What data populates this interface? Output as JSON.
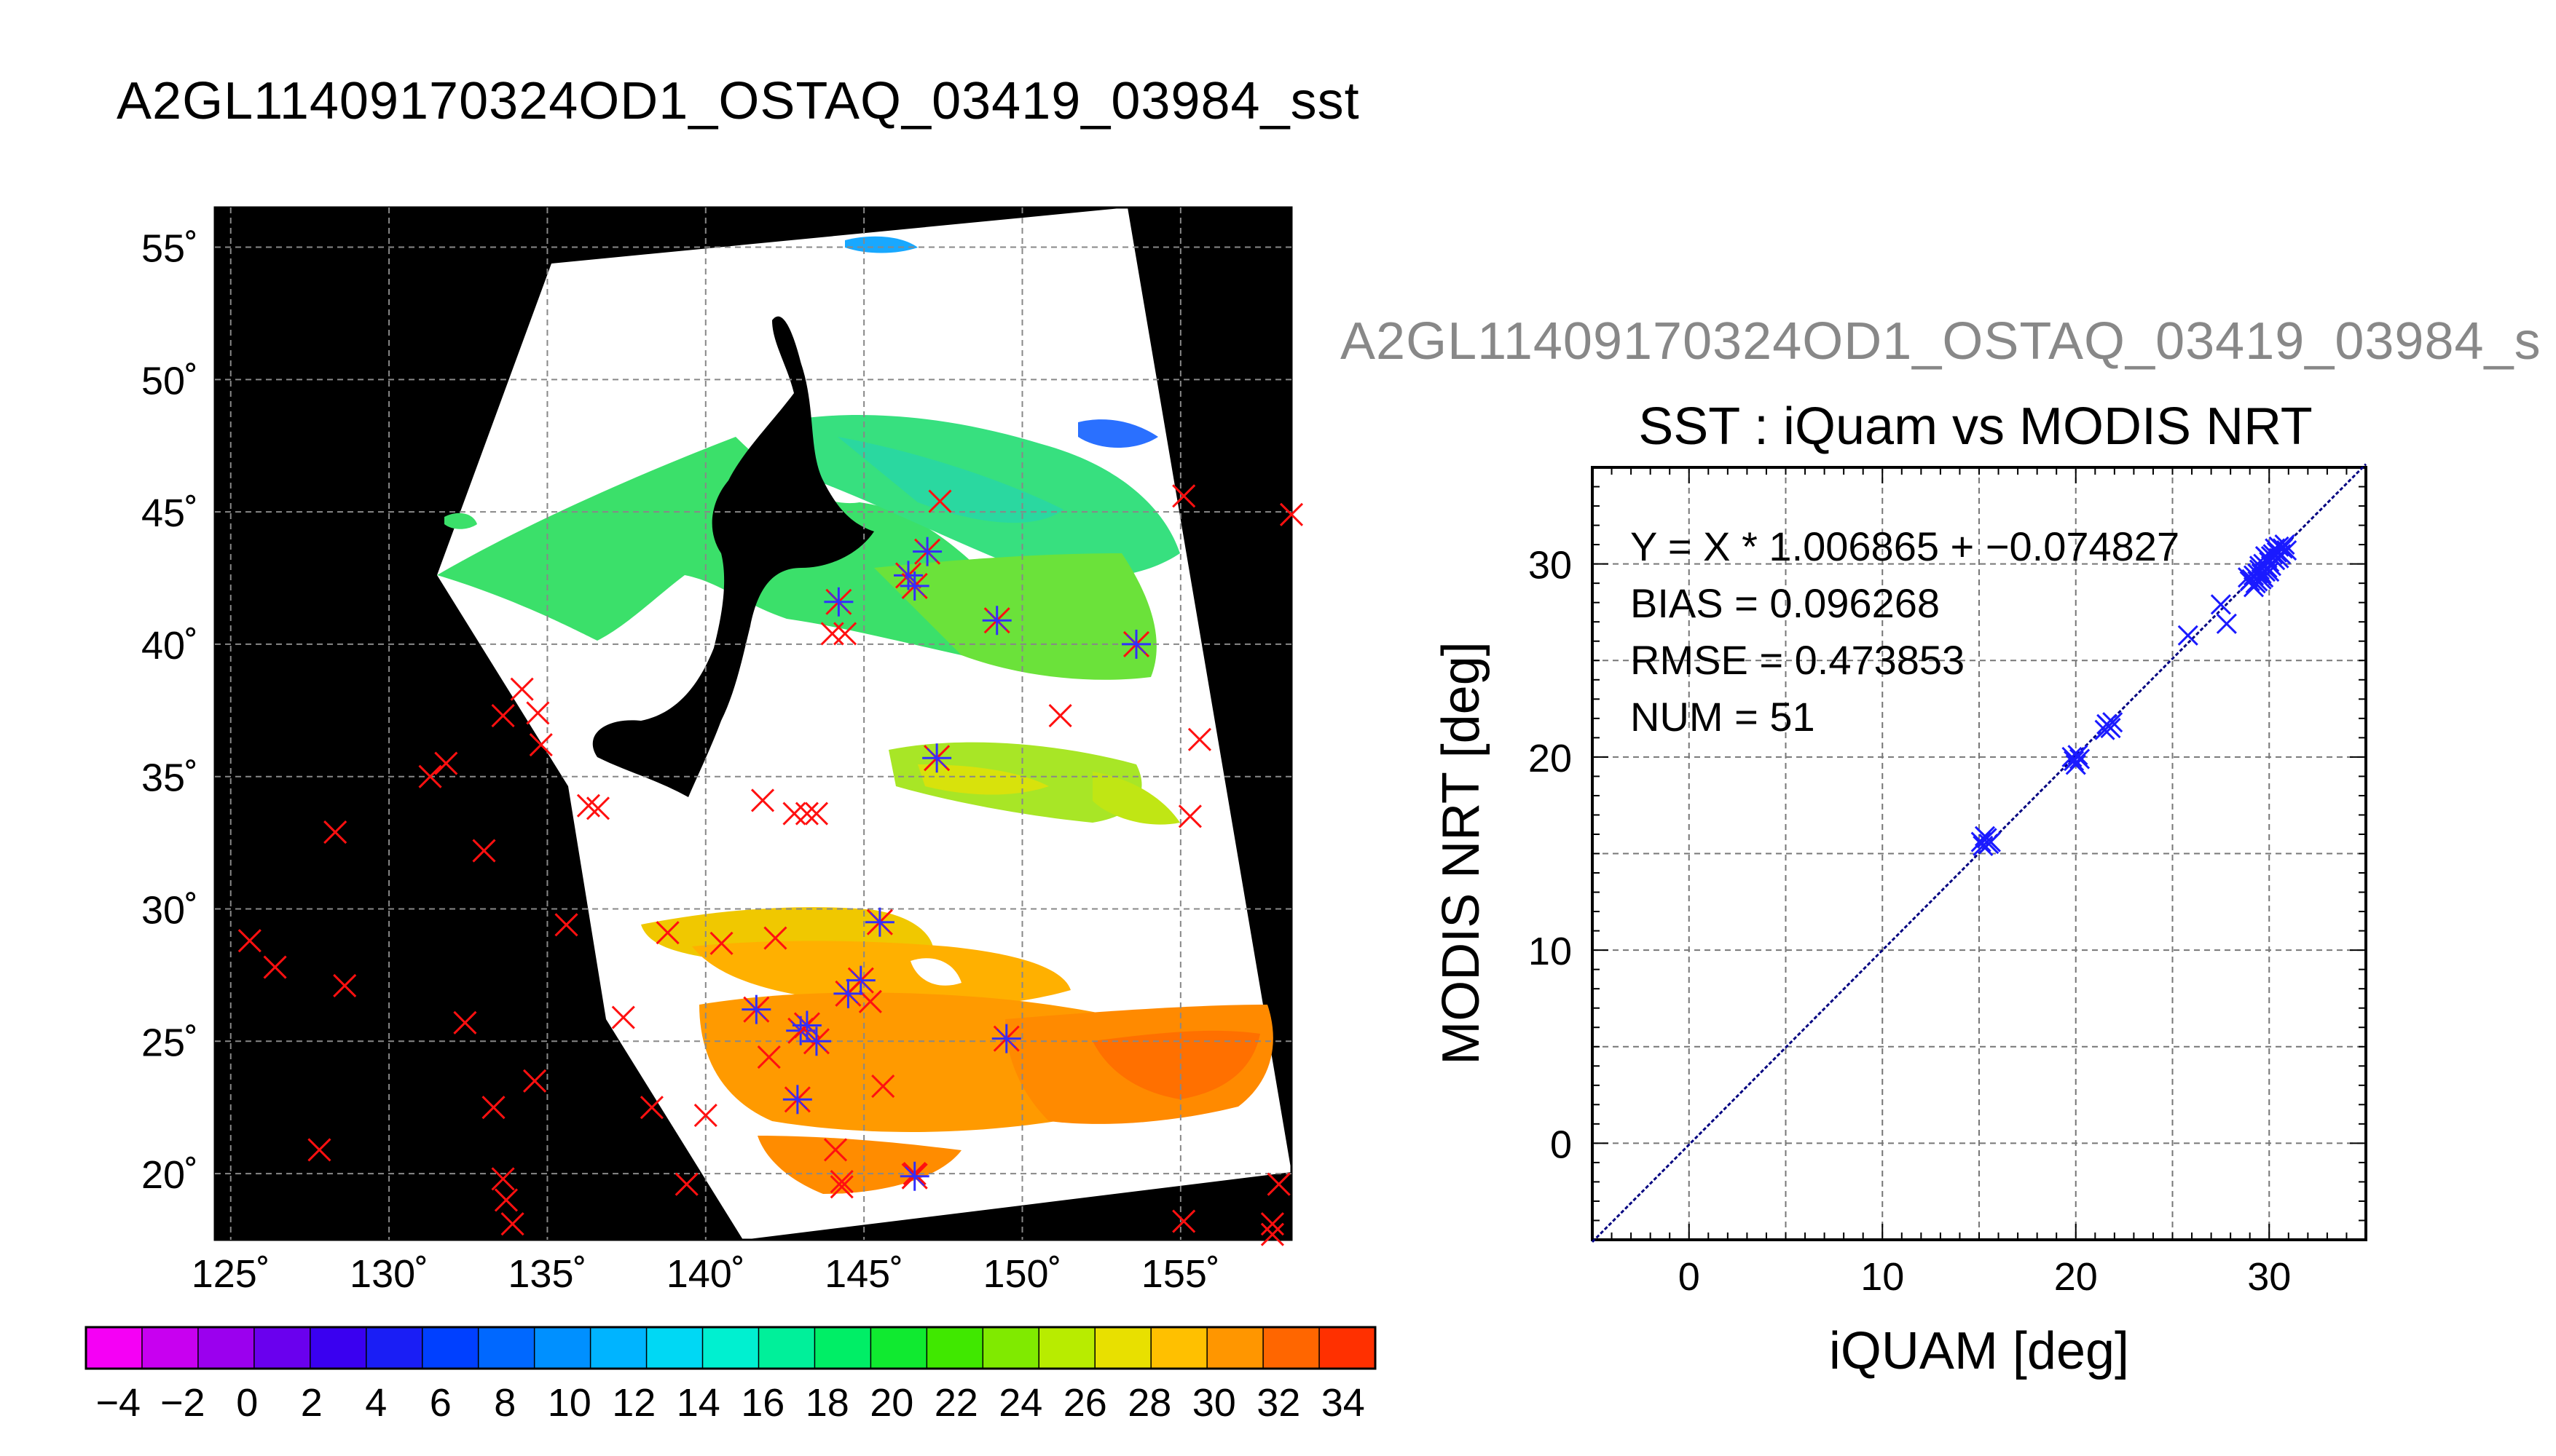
{
  "page": {
    "title": "A2GL11409170324OD1_OSTAQ_03419_03984_sst",
    "right_caption": "A2GL11409170324OD1_OSTAQ_03419_03984_s"
  },
  "chart_data": [
    {
      "type": "map",
      "lon_ticks": [
        "125˚",
        "130˚",
        "135˚",
        "140˚",
        "145˚",
        "150˚",
        "155˚"
      ],
      "lat_ticks": [
        "20˚",
        "25˚",
        "30˚",
        "35˚",
        "40˚",
        "45˚",
        "50˚",
        "55˚"
      ],
      "lon_range": [
        124.5,
        158.5
      ],
      "lat_range": [
        17.5,
        56.5
      ],
      "colorbar": {
        "ticks": [
          "−4",
          "−2",
          "0",
          "2",
          "4",
          "6",
          "8",
          "10",
          "12",
          "14",
          "16",
          "18",
          "20",
          "22",
          "24",
          "26",
          "28",
          "30",
          "32",
          "34"
        ],
        "range": [
          -5,
          35
        ],
        "colors": [
          "#f500f5",
          "#c800f0",
          "#9b00ee",
          "#6a00ee",
          "#3a00f0",
          "#1a1ef5",
          "#0040ff",
          "#0068ff",
          "#0090ff",
          "#00b4ff",
          "#00d8f4",
          "#00f0d0",
          "#00f09a",
          "#00ee66",
          "#10ea30",
          "#40e800",
          "#80ea00",
          "#b8ec00",
          "#e8e000",
          "#ffc000",
          "#ff9600",
          "#ff6600",
          "#ff3000"
        ]
      },
      "matchups_red_x": [
        [
          125.6,
          28.8
        ],
        [
          126.4,
          27.8
        ],
        [
          127.8,
          20.9
        ],
        [
          128.3,
          32.9
        ],
        [
          128.6,
          27.1
        ],
        [
          131.3,
          35.0
        ],
        [
          131.8,
          35.5
        ],
        [
          132.4,
          25.7
        ],
        [
          133.0,
          32.2
        ],
        [
          133.3,
          22.5
        ],
        [
          133.6,
          37.3
        ],
        [
          133.6,
          19.8
        ],
        [
          133.7,
          19.0
        ],
        [
          133.9,
          18.1
        ],
        [
          134.2,
          38.3
        ],
        [
          134.6,
          23.5
        ],
        [
          134.7,
          37.4
        ],
        [
          134.8,
          36.2
        ],
        [
          135.6,
          29.4
        ],
        [
          136.3,
          33.9
        ],
        [
          136.6,
          33.8
        ],
        [
          137.4,
          25.9
        ],
        [
          138.3,
          22.5
        ],
        [
          138.8,
          29.1
        ],
        [
          139.4,
          19.6
        ],
        [
          140.0,
          22.2
        ],
        [
          140.5,
          28.7
        ],
        [
          141.8,
          34.1
        ],
        [
          142.0,
          24.4
        ],
        [
          142.2,
          28.9
        ],
        [
          142.8,
          33.6
        ],
        [
          143.2,
          33.6
        ],
        [
          143.5,
          33.6
        ],
        [
          144.0,
          40.4
        ],
        [
          144.1,
          20.9
        ],
        [
          144.4,
          40.4
        ],
        [
          144.3,
          19.7
        ],
        [
          144.3,
          19.5
        ],
        [
          145.2,
          26.5
        ],
        [
          145.6,
          23.3
        ],
        [
          146.6,
          20.0
        ],
        [
          147.4,
          45.4
        ],
        [
          151.2,
          37.3
        ],
        [
          155.3,
          33.5
        ],
        [
          155.1,
          45.6
        ],
        [
          155.6,
          36.4
        ],
        [
          155.1,
          18.2
        ],
        [
          157.9,
          18.1
        ],
        [
          158.1,
          19.6
        ],
        [
          158.5,
          44.9
        ],
        [
          157.9,
          17.7
        ]
      ],
      "matchups_asterisk": [
        [
          147.3,
          35.7
        ],
        [
          144.2,
          41.6
        ],
        [
          146.4,
          42.6
        ],
        [
          146.6,
          42.2
        ],
        [
          147.0,
          43.5
        ],
        [
          149.2,
          40.9
        ],
        [
          153.6,
          40.0
        ],
        [
          145.5,
          29.5
        ],
        [
          144.9,
          27.3
        ],
        [
          144.5,
          26.8
        ],
        [
          143.0,
          25.4
        ],
        [
          143.2,
          25.6
        ],
        [
          143.5,
          25.0
        ],
        [
          141.6,
          26.2
        ],
        [
          142.9,
          22.8
        ],
        [
          146.6,
          19.9
        ],
        [
          149.5,
          25.1
        ]
      ]
    },
    {
      "type": "scatter",
      "title": "SST : iQuam vs MODIS NRT",
      "xlabel": "iQUAM [deg]",
      "ylabel": "MODIS NRT [deg]",
      "xlim": [
        -5,
        35
      ],
      "ylim": [
        -5,
        35
      ],
      "xticks": [
        "0",
        "10",
        "20",
        "30"
      ],
      "yticks": [
        "0",
        "10",
        "20",
        "30"
      ],
      "grid": true,
      "stats": [
        "Y = X * 1.006865 + −0.074827",
        "BIAS = 0.096268",
        "RMSE = 0.473853",
        "NUM = 51"
      ],
      "fit": {
        "slope": 1.006865,
        "intercept": -0.074827
      },
      "points": [
        [
          15.2,
          15.4
        ],
        [
          15.4,
          15.8
        ],
        [
          15.6,
          15.6
        ],
        [
          15.3,
          15.9
        ],
        [
          15.5,
          15.5
        ],
        [
          19.8,
          20.0
        ],
        [
          20.0,
          19.6
        ],
        [
          20.1,
          20.1
        ],
        [
          19.9,
          19.8
        ],
        [
          21.5,
          21.4
        ],
        [
          21.7,
          21.6
        ],
        [
          21.8,
          21.5
        ],
        [
          21.6,
          21.7
        ],
        [
          25.8,
          26.3
        ],
        [
          27.5,
          27.9
        ],
        [
          27.8,
          26.9
        ],
        [
          28.9,
          29.3
        ],
        [
          29.1,
          29.2
        ],
        [
          29.2,
          29.4
        ],
        [
          29.4,
          29.1
        ],
        [
          29.6,
          29.5
        ],
        [
          29.8,
          29.6
        ],
        [
          29.5,
          29.9
        ],
        [
          29.7,
          29.3
        ],
        [
          30.0,
          30.1
        ],
        [
          30.1,
          29.9
        ],
        [
          29.9,
          30.3
        ],
        [
          30.2,
          30.5
        ],
        [
          30.4,
          30.6
        ],
        [
          30.5,
          30.9
        ],
        [
          30.7,
          30.8
        ],
        [
          30.6,
          30.5
        ],
        [
          29.3,
          29.0
        ],
        [
          29.6,
          29.2
        ],
        [
          29.0,
          29.1
        ],
        [
          30.3,
          30.2
        ],
        [
          29.8,
          30.4
        ],
        [
          30.8,
          31.0
        ],
        [
          30.9,
          30.7
        ],
        [
          29.2,
          28.8
        ],
        [
          29.5,
          29.7
        ],
        [
          30.0,
          29.6
        ],
        [
          29.4,
          29.5
        ],
        [
          29.7,
          30.0
        ],
        [
          30.1,
          30.4
        ],
        [
          30.3,
          30.8
        ],
        [
          15.1,
          15.6
        ],
        [
          20.2,
          19.9
        ],
        [
          21.9,
          21.8
        ],
        [
          29.9,
          29.8
        ],
        [
          30.5,
          30.3
        ]
      ]
    }
  ]
}
